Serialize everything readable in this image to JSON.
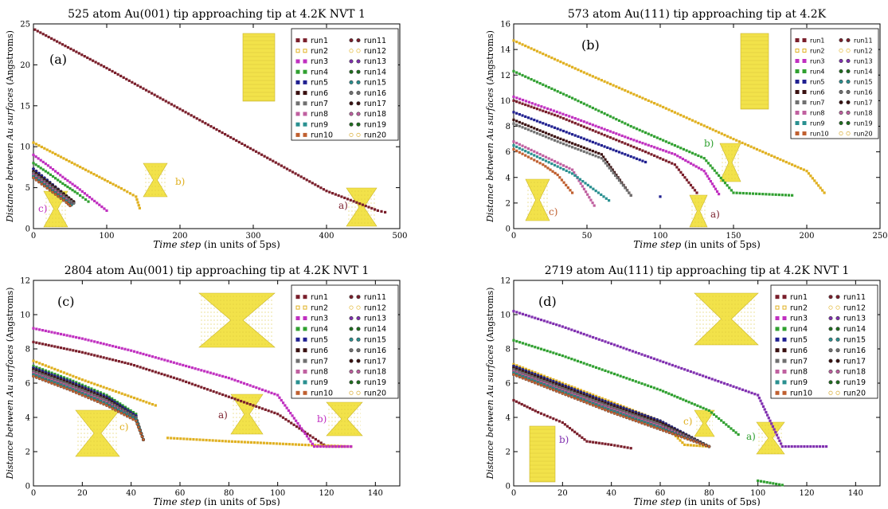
{
  "chart_data": [
    {
      "type": "scatter",
      "title": "525 atom Au(001) tip approaching tip at 4.2K NVT 1",
      "panel_label": "(a)",
      "xlabel": "Time step (in units of 5ps)",
      "ylabel": "Distance between Au surfaces (Angstroms)",
      "xlim": [
        0,
        500
      ],
      "ylim": [
        0,
        25
      ],
      "xticks": [
        0,
        100,
        200,
        300,
        400,
        500
      ],
      "yticks": [
        0,
        5,
        10,
        15,
        20,
        25
      ],
      "grid": false,
      "legend_position": "top-right",
      "annotations": [
        "a)",
        "b)",
        "c)"
      ],
      "series": [
        {
          "name": "run1",
          "color": "#7a1f2b",
          "marker": "square",
          "x": [
            2,
            100,
            200,
            300,
            400,
            470,
            480
          ],
          "y": [
            24.3,
            19.6,
            14.6,
            9.6,
            4.6,
            2.2,
            2.0
          ]
        },
        {
          "name": "run2",
          "color": "#e0b020",
          "marker": "square",
          "x": [
            0,
            30,
            60,
            90,
            120,
            140,
            145
          ],
          "y": [
            10.5,
            9.1,
            7.7,
            6.3,
            4.9,
            3.9,
            2.5
          ]
        },
        {
          "name": "run3",
          "color": "#c030c0",
          "marker": "square",
          "x": [
            0,
            20,
            40,
            60,
            80,
            100
          ],
          "y": [
            9.0,
            7.7,
            6.3,
            5.0,
            3.6,
            2.2
          ]
        },
        {
          "name": "run4",
          "color": "#30a030",
          "marker": "square",
          "x": [
            0,
            20,
            40,
            60,
            75
          ],
          "y": [
            8.0,
            6.8,
            5.5,
            4.3,
            3.3
          ]
        },
        {
          "name": "run5",
          "color": "#202090",
          "marker": "circle",
          "x": [
            0,
            15,
            30,
            45,
            55
          ],
          "y": [
            7.3,
            6.2,
            5.1,
            4.0,
            3.2
          ]
        },
        {
          "name": "run6",
          "color": "#3a1010",
          "marker": "circle",
          "x": [
            0,
            15,
            30,
            45,
            55
          ],
          "y": [
            7.0,
            6.0,
            5.0,
            4.0,
            3.3
          ]
        },
        {
          "name": "run7",
          "color": "#707070",
          "marker": "circle",
          "x": [
            0,
            15,
            30,
            45,
            55
          ],
          "y": [
            6.8,
            5.8,
            4.8,
            3.8,
            3.1
          ]
        },
        {
          "name": "run8",
          "color": "#c060a0",
          "marker": "circle",
          "x": [
            0,
            15,
            30,
            45,
            52
          ],
          "y": [
            6.6,
            5.6,
            4.6,
            3.6,
            3.0
          ]
        },
        {
          "name": "run9",
          "color": "#2a9090",
          "marker": "circle",
          "x": [
            0,
            15,
            30,
            45,
            52
          ],
          "y": [
            6.4,
            5.4,
            4.4,
            3.4,
            2.9
          ]
        },
        {
          "name": "run10",
          "color": "#c06030",
          "marker": "circle",
          "x": [
            0,
            15,
            30,
            45,
            50
          ],
          "y": [
            6.2,
            5.2,
            4.2,
            3.2,
            2.8
          ]
        }
      ]
    },
    {
      "type": "scatter",
      "title": "573 atom Au(111) tip approaching tip at 4.2K",
      "panel_label": "(b)",
      "xlabel": "Time step (in units of 5ps)",
      "ylabel": "Distance between Au surfaces (Angstroms)",
      "xlim": [
        0,
        250
      ],
      "ylim": [
        0,
        16
      ],
      "xticks": [
        0,
        50,
        100,
        150,
        200,
        250
      ],
      "yticks": [
        0,
        2,
        4,
        6,
        8,
        10,
        12,
        14,
        16
      ],
      "grid": false,
      "legend_position": "top-right",
      "annotations": [
        "a)",
        "b)",
        "c)"
      ],
      "series": [
        {
          "name": "run1",
          "color": "#7a1f2b",
          "marker": "square",
          "x": [
            0,
            30,
            60,
            90,
            110,
            125
          ],
          "y": [
            10.0,
            8.8,
            7.4,
            6.0,
            5.0,
            2.8
          ]
        },
        {
          "name": "run2",
          "color": "#e0b020",
          "marker": "square",
          "x": [
            0,
            50,
            100,
            150,
            200,
            212
          ],
          "y": [
            14.7,
            12.1,
            9.6,
            7.0,
            4.5,
            2.8
          ]
        },
        {
          "name": "run3",
          "color": "#c030c0",
          "marker": "square",
          "x": [
            0,
            40,
            80,
            110,
            130,
            140
          ],
          "y": [
            10.3,
            8.7,
            7.0,
            5.8,
            4.5,
            2.7
          ]
        },
        {
          "name": "run4",
          "color": "#30a030",
          "marker": "square",
          "x": [
            0,
            40,
            80,
            130,
            150,
            190
          ],
          "y": [
            12.3,
            10.2,
            8.0,
            5.5,
            2.8,
            2.6
          ]
        },
        {
          "name": "run5",
          "color": "#202090",
          "marker": "square",
          "x": [
            0,
            30,
            60,
            90,
            100
          ],
          "y": [
            9.1,
            7.8,
            6.5,
            5.2,
            2.5
          ]
        },
        {
          "name": "run6",
          "color": "#3a1010",
          "marker": "square",
          "x": [
            0,
            30,
            60,
            80
          ],
          "y": [
            8.5,
            7.1,
            5.8,
            2.6
          ]
        },
        {
          "name": "run7",
          "color": "#707070",
          "marker": "square",
          "x": [
            0,
            30,
            60,
            80
          ],
          "y": [
            8.2,
            6.8,
            5.5,
            2.6
          ]
        },
        {
          "name": "run8",
          "color": "#c060a0",
          "marker": "square",
          "x": [
            0,
            20,
            40,
            55
          ],
          "y": [
            6.8,
            5.7,
            4.6,
            1.8
          ]
        },
        {
          "name": "run9",
          "color": "#2a9090",
          "marker": "square",
          "x": [
            0,
            20,
            40,
            65
          ],
          "y": [
            6.5,
            5.4,
            4.3,
            2.2
          ]
        },
        {
          "name": "run10",
          "color": "#c06030",
          "marker": "square",
          "x": [
            0,
            20,
            30,
            40
          ],
          "y": [
            6.2,
            5.0,
            4.2,
            2.8
          ]
        }
      ]
    },
    {
      "type": "scatter",
      "title": "2804 atom Au(001) tip approaching tip at 4.2K NVT 1",
      "panel_label": "(c)",
      "xlabel": "Time step (in units of 5ps)",
      "ylabel": "Distance between Au surfaces (Angstroms)",
      "xlim": [
        0,
        150
      ],
      "ylim": [
        0,
        12
      ],
      "xticks": [
        0,
        20,
        40,
        60,
        80,
        100,
        120,
        140
      ],
      "yticks": [
        0,
        2,
        4,
        6,
        8,
        10,
        12
      ],
      "grid": false,
      "legend_position": "top-right",
      "annotations": [
        "a)",
        "b)",
        "c)"
      ],
      "series": [
        {
          "name": "run1",
          "color": "#7a1f2b",
          "marker": "square",
          "x": [
            0,
            20,
            40,
            60,
            80,
            100,
            120,
            130
          ],
          "y": [
            8.4,
            7.8,
            7.1,
            6.2,
            5.2,
            4.2,
            2.3,
            2.3
          ]
        },
        {
          "name": "run2",
          "color": "#e0b020",
          "marker": "square",
          "x": [
            0,
            20,
            40,
            50,
            55,
            80,
            110,
            130
          ],
          "y": [
            7.3,
            6.2,
            5.2,
            4.7,
            2.8,
            2.6,
            2.4,
            2.3
          ]
        },
        {
          "name": "run3",
          "color": "#c030c0",
          "marker": "square",
          "x": [
            0,
            20,
            40,
            60,
            80,
            100,
            115,
            130
          ],
          "y": [
            9.2,
            8.6,
            7.9,
            7.1,
            6.3,
            5.3,
            2.3,
            2.3
          ]
        },
        {
          "name": "run4",
          "color": "#30a030",
          "marker": "square",
          "x": [
            0,
            15,
            30,
            42,
            45
          ],
          "y": [
            7.0,
            6.2,
            5.3,
            4.2,
            2.7
          ]
        },
        {
          "name": "run5",
          "color": "#202090",
          "marker": "circle",
          "x": [
            0,
            15,
            30,
            42,
            45
          ],
          "y": [
            6.9,
            6.1,
            5.2,
            4.1,
            2.7
          ]
        },
        {
          "name": "run6",
          "color": "#3a1010",
          "marker": "circle",
          "x": [
            0,
            15,
            30,
            42,
            45
          ],
          "y": [
            6.8,
            6.0,
            5.1,
            4.0,
            2.7
          ]
        },
        {
          "name": "run7",
          "color": "#707070",
          "marker": "circle",
          "x": [
            0,
            15,
            30,
            42,
            45
          ],
          "y": [
            6.7,
            5.9,
            5.0,
            4.0,
            2.7
          ]
        },
        {
          "name": "run8",
          "color": "#c060a0",
          "marker": "circle",
          "x": [
            0,
            15,
            30,
            42,
            45
          ],
          "y": [
            6.6,
            5.8,
            4.9,
            3.9,
            2.7
          ]
        },
        {
          "name": "run9",
          "color": "#2a9090",
          "marker": "circle",
          "x": [
            0,
            15,
            30,
            42,
            45
          ],
          "y": [
            6.5,
            5.7,
            4.8,
            3.9,
            2.7
          ]
        },
        {
          "name": "run10",
          "color": "#c06030",
          "marker": "circle",
          "x": [
            0,
            15,
            30,
            42,
            45
          ],
          "y": [
            6.4,
            5.6,
            4.7,
            3.8,
            2.7
          ]
        }
      ]
    },
    {
      "type": "scatter",
      "title": "2719 atom Au(111) tip approaching tip at 4.2K NVT 1",
      "panel_label": "(d)",
      "xlabel": "Time step (in units of 5ps)",
      "ylabel": "Distance between Au surfaces (Angstroms)",
      "xlim": [
        0,
        150
      ],
      "ylim": [
        0,
        12
      ],
      "xticks": [
        0,
        20,
        40,
        60,
        80,
        100,
        120,
        140
      ],
      "yticks": [
        0,
        2,
        4,
        6,
        8,
        10,
        12
      ],
      "grid": false,
      "legend_position": "top-right",
      "annotations": [
        "a)",
        "b)",
        "c)"
      ],
      "series": [
        {
          "name": "run1",
          "color": "#7a1f2b",
          "marker": "square",
          "x": [
            0,
            10,
            20,
            30,
            40,
            48
          ],
          "y": [
            5.0,
            4.3,
            3.7,
            2.6,
            2.4,
            2.2
          ]
        },
        {
          "name": "run2",
          "color": "#e0b020",
          "marker": "square",
          "x": [
            0,
            20,
            40,
            60,
            70,
            80
          ],
          "y": [
            7.1,
            6.0,
            4.9,
            3.8,
            2.4,
            2.3
          ]
        },
        {
          "name": "run3",
          "color": "#8030b0",
          "marker": "square",
          "x": [
            0,
            20,
            40,
            60,
            80,
            100,
            110,
            128
          ],
          "y": [
            10.2,
            9.3,
            8.3,
            7.3,
            6.3,
            5.3,
            2.3,
            2.3
          ]
        },
        {
          "name": "run4",
          "color": "#30a030",
          "marker": "square",
          "x": [
            0,
            20,
            40,
            60,
            80,
            92,
            100,
            110
          ],
          "y": [
            8.5,
            7.6,
            6.6,
            5.6,
            4.4,
            3.0,
            0.3,
            0.05
          ]
        },
        {
          "name": "run5",
          "color": "#202090",
          "marker": "circle",
          "x": [
            0,
            20,
            40,
            60,
            80
          ],
          "y": [
            7.0,
            5.9,
            4.8,
            3.8,
            2.3
          ]
        },
        {
          "name": "run6",
          "color": "#3a1010",
          "marker": "circle",
          "x": [
            0,
            20,
            40,
            60,
            80
          ],
          "y": [
            6.9,
            5.8,
            4.7,
            3.7,
            2.3
          ]
        },
        {
          "name": "run7",
          "color": "#707070",
          "marker": "circle",
          "x": [
            0,
            20,
            40,
            60,
            80
          ],
          "y": [
            6.8,
            5.7,
            4.6,
            3.6,
            2.3
          ]
        },
        {
          "name": "run8",
          "color": "#c060a0",
          "marker": "circle",
          "x": [
            0,
            20,
            40,
            60,
            80
          ],
          "y": [
            6.7,
            5.6,
            4.5,
            3.5,
            2.3
          ]
        },
        {
          "name": "run9",
          "color": "#2a9090",
          "marker": "circle",
          "x": [
            0,
            20,
            40,
            60,
            80
          ],
          "y": [
            6.6,
            5.5,
            4.4,
            3.4,
            2.3
          ]
        },
        {
          "name": "run10",
          "color": "#c06030",
          "marker": "circle",
          "x": [
            0,
            20,
            40,
            60,
            80
          ],
          "y": [
            6.5,
            5.4,
            4.3,
            3.3,
            2.3
          ]
        }
      ]
    }
  ],
  "legend_entries": [
    "run1",
    "run2",
    "run3",
    "run4",
    "run5",
    "run6",
    "run7",
    "run8",
    "run9",
    "run10",
    "run11",
    "run12",
    "run13",
    "run14",
    "run15",
    "run16",
    "run17",
    "run18",
    "run19",
    "run20"
  ],
  "legend_colors": [
    "#7a1f2b",
    "#e0b020",
    "#c030c0",
    "#30a030",
    "#202090",
    "#3a1010",
    "#707070",
    "#c060a0",
    "#2a9090",
    "#c06030",
    "#7a1f2b",
    "#e0b020",
    "#8030b0",
    "#1e6e1e",
    "#2a9090",
    "#707070",
    "#3a1010",
    "#c060a0",
    "#1e6e1e",
    "#d4a017"
  ],
  "legend_open_markers": [
    "run2",
    "run12",
    "run20"
  ],
  "colors": {
    "background": "#ffffff",
    "axis": "#000000",
    "au_yellow": "#f2e24a"
  }
}
